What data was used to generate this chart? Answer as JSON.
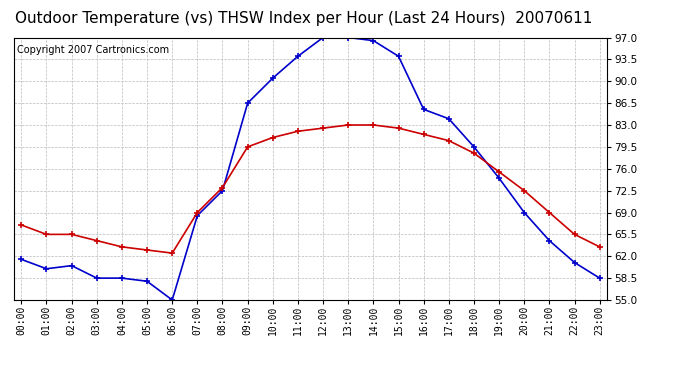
{
  "title": "Outdoor Temperature (vs) THSW Index per Hour (Last 24 Hours)  20070611",
  "copyright": "Copyright 2007 Cartronics.com",
  "hours": [
    "00:00",
    "01:00",
    "02:00",
    "03:00",
    "04:00",
    "05:00",
    "06:00",
    "07:00",
    "08:00",
    "09:00",
    "10:00",
    "11:00",
    "12:00",
    "13:00",
    "14:00",
    "15:00",
    "16:00",
    "17:00",
    "18:00",
    "19:00",
    "20:00",
    "21:00",
    "22:00",
    "23:00"
  ],
  "thsw": [
    61.5,
    60.0,
    60.5,
    58.5,
    58.5,
    58.0,
    55.0,
    68.5,
    72.5,
    86.5,
    90.5,
    94.0,
    97.0,
    97.0,
    96.5,
    94.0,
    85.5,
    84.0,
    79.5,
    74.5,
    69.0,
    64.5,
    61.0,
    58.5
  ],
  "temp": [
    67.0,
    65.5,
    65.5,
    64.5,
    63.5,
    63.0,
    62.5,
    69.0,
    73.0,
    79.5,
    81.0,
    82.0,
    82.5,
    83.0,
    83.0,
    82.5,
    81.5,
    80.5,
    78.5,
    75.5,
    72.5,
    69.0,
    65.5,
    63.5
  ],
  "ylim": [
    55.0,
    97.0
  ],
  "yticks": [
    55.0,
    58.5,
    62.0,
    65.5,
    69.0,
    72.5,
    76.0,
    79.5,
    83.0,
    86.5,
    90.0,
    93.5,
    97.0
  ],
  "thsw_color": "#0000cc",
  "temp_color": "#cc0000",
  "bg_color": "#ffffff",
  "plot_bg_color": "#ffffff",
  "grid_color": "#bbbbbb",
  "title_fontsize": 11,
  "copyright_fontsize": 7
}
